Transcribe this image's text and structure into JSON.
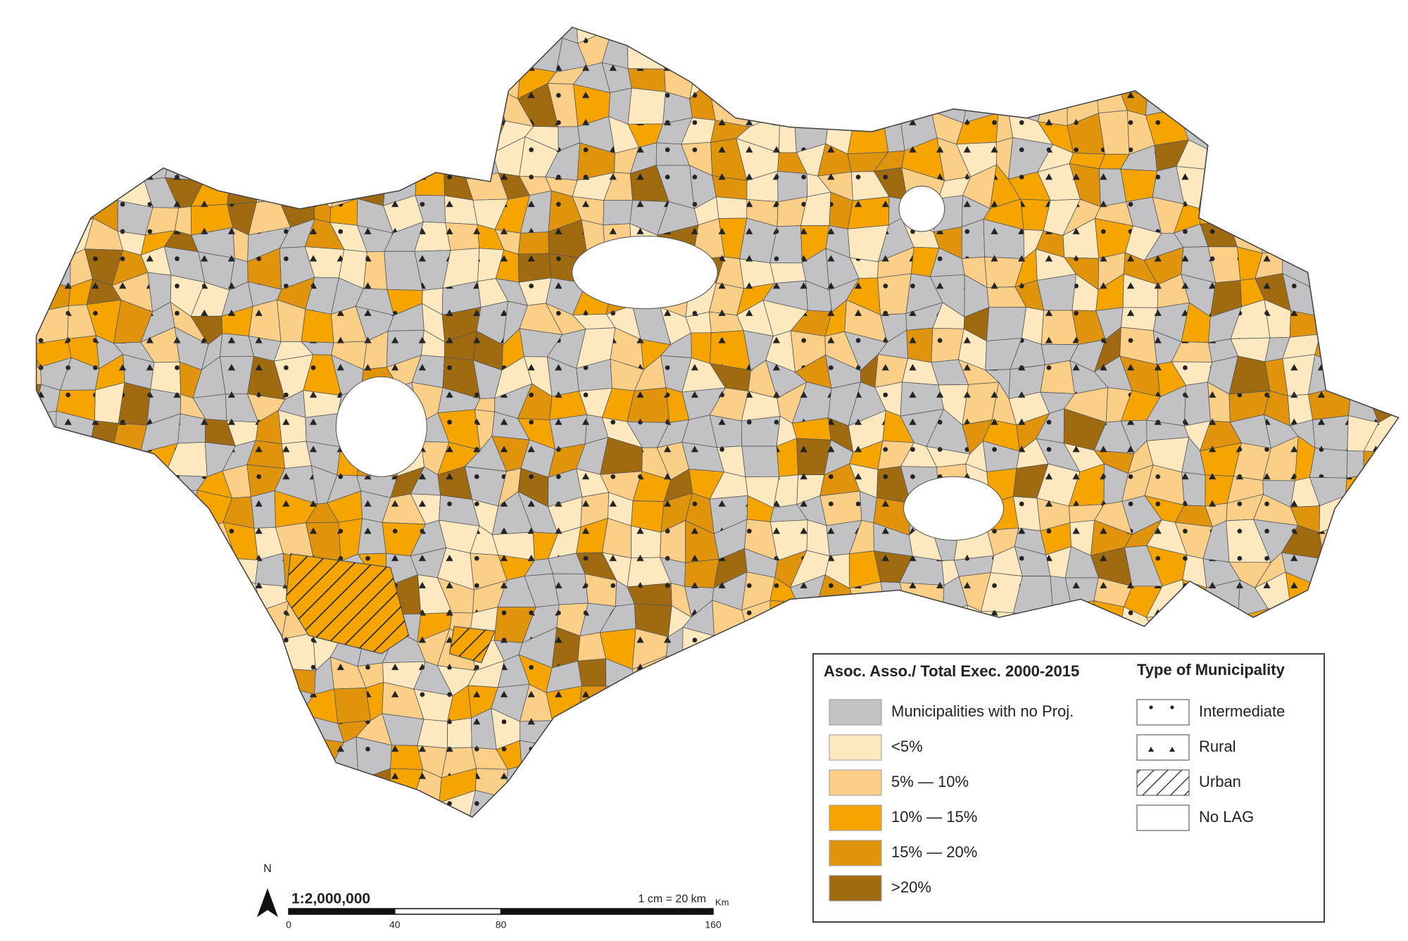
{
  "legend": {
    "title": "Asoc. Asso./ Total Exec. 2000-2015",
    "classes": [
      {
        "label": "Municipalities with no Proj.",
        "color": "#c2c2c4"
      },
      {
        "label": "<5%",
        "color": "#fde8c0"
      },
      {
        "label": "5% — 10%",
        "color": "#fbcf88"
      },
      {
        "label": "10% — 15%",
        "color": "#f6a400"
      },
      {
        "label": "15% — 20%",
        "color": "#e0940c"
      },
      {
        "label": ">20%",
        "color": "#9f6a10"
      }
    ],
    "type_title": "Type of Municipality",
    "types": [
      {
        "label": "Intermediate",
        "pattern": "dots"
      },
      {
        "label": "Rural",
        "pattern": "triangles"
      },
      {
        "label": "Urban",
        "pattern": "hatch"
      },
      {
        "label": "No LAG",
        "pattern": "none"
      }
    ]
  },
  "scale": {
    "north": "N",
    "ratio": "1:2,000,000",
    "note": "1 cm = 20 km",
    "unit": "Km",
    "ticks": [
      0,
      40,
      80,
      160
    ]
  }
}
